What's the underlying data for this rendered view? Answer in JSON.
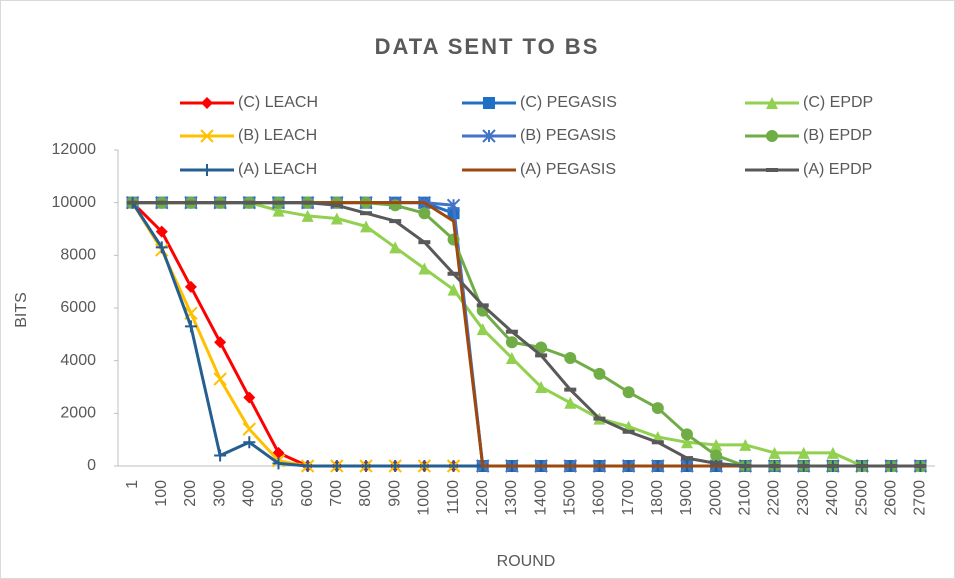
{
  "chart_data": {
    "type": "line",
    "title": "DATA SENT TO BS",
    "x_label": "ROUND",
    "y_label": "BITS",
    "categories": [
      "1",
      "100",
      "200",
      "300",
      "400",
      "500",
      "600",
      "700",
      "800",
      "900",
      "1000",
      "1100",
      "1200",
      "1300",
      "1400",
      "1500",
      "1600",
      "1700",
      "1800",
      "1900",
      "2000",
      "2100",
      "2200",
      "2300",
      "2400",
      "2500",
      "2600",
      "2700"
    ],
    "ylim": [
      0,
      12000
    ],
    "yticks": [
      0,
      2000,
      4000,
      6000,
      8000,
      10000,
      12000
    ],
    "grid": false,
    "legend": "top",
    "series": [
      {
        "name": "(C) LEACH",
        "color": "#ff0000",
        "marker": "diamond",
        "values": [
          10000,
          8900,
          6800,
          4700,
          2600,
          500,
          0,
          0,
          0,
          0,
          0,
          0,
          0,
          0,
          0,
          0,
          0,
          0,
          0,
          0,
          0,
          0,
          0,
          0,
          0,
          0,
          0,
          0
        ]
      },
      {
        "name": "(C) PEGASIS",
        "color": "#1f6fc5",
        "marker": "square",
        "values": [
          10000,
          10000,
          10000,
          10000,
          10000,
          10000,
          10000,
          10000,
          10000,
          10000,
          10000,
          9600,
          0,
          0,
          0,
          0,
          0,
          0,
          0,
          0,
          0,
          0,
          0,
          0,
          0,
          0,
          0,
          0
        ]
      },
      {
        "name": "(C) EPDP",
        "color": "#92d050",
        "marker": "triangle",
        "values": [
          10000,
          10000,
          10000,
          10000,
          10000,
          9700,
          9500,
          9400,
          9100,
          8300,
          7500,
          6700,
          5200,
          4100,
          3000,
          2400,
          1800,
          1500,
          1100,
          900,
          800,
          800,
          500,
          500,
          500,
          0,
          0,
          0
        ]
      },
      {
        "name": "(B) LEACH",
        "color": "#ffc000",
        "marker": "x",
        "values": [
          10000,
          8200,
          5800,
          3300,
          1400,
          200,
          0,
          0,
          0,
          0,
          0,
          0,
          0,
          0,
          0,
          0,
          0,
          0,
          0,
          0,
          0,
          0,
          0,
          0,
          0,
          0,
          0,
          0
        ]
      },
      {
        "name": "(B) PEGASIS",
        "color": "#4472c4",
        "marker": "star",
        "values": [
          10000,
          10000,
          10000,
          10000,
          10000,
          10000,
          10000,
          10000,
          10000,
          10000,
          10000,
          9900,
          0,
          0,
          0,
          0,
          0,
          0,
          0,
          0,
          0,
          0,
          0,
          0,
          0,
          0,
          0,
          0
        ]
      },
      {
        "name": "(B) EPDP",
        "color": "#70ad47",
        "marker": "circle",
        "values": [
          10000,
          10000,
          10000,
          10000,
          10000,
          10000,
          10000,
          10000,
          10000,
          9900,
          9600,
          8600,
          5900,
          4700,
          4500,
          4100,
          3500,
          2800,
          2200,
          1200,
          400,
          0,
          0,
          0,
          0,
          0,
          0,
          0
        ]
      },
      {
        "name": "(A) LEACH",
        "color": "#255e91",
        "marker": "plus",
        "values": [
          10000,
          8300,
          5300,
          400,
          900,
          100,
          0,
          0,
          0,
          0,
          0,
          0,
          0,
          0,
          0,
          0,
          0,
          0,
          0,
          0,
          0,
          0,
          0,
          0,
          0,
          0,
          0,
          0
        ]
      },
      {
        "name": "(A) PEGASIS",
        "color": "#9e480e",
        "marker": "none",
        "values": [
          10000,
          10000,
          10000,
          10000,
          10000,
          10000,
          10000,
          10000,
          10000,
          10000,
          10000,
          9300,
          0,
          0,
          0,
          0,
          0,
          0,
          0,
          0,
          0,
          0,
          0,
          0,
          0,
          0,
          0,
          0
        ]
      },
      {
        "name": "(A) EPDP",
        "color": "#595959",
        "marker": "dash",
        "values": [
          10000,
          10000,
          10000,
          10000,
          10000,
          10000,
          10000,
          9900,
          9600,
          9300,
          8500,
          7300,
          6100,
          5100,
          4200,
          2900,
          1800,
          1300,
          900,
          300,
          100,
          0,
          0,
          0,
          0,
          0,
          0,
          0
        ]
      }
    ]
  }
}
